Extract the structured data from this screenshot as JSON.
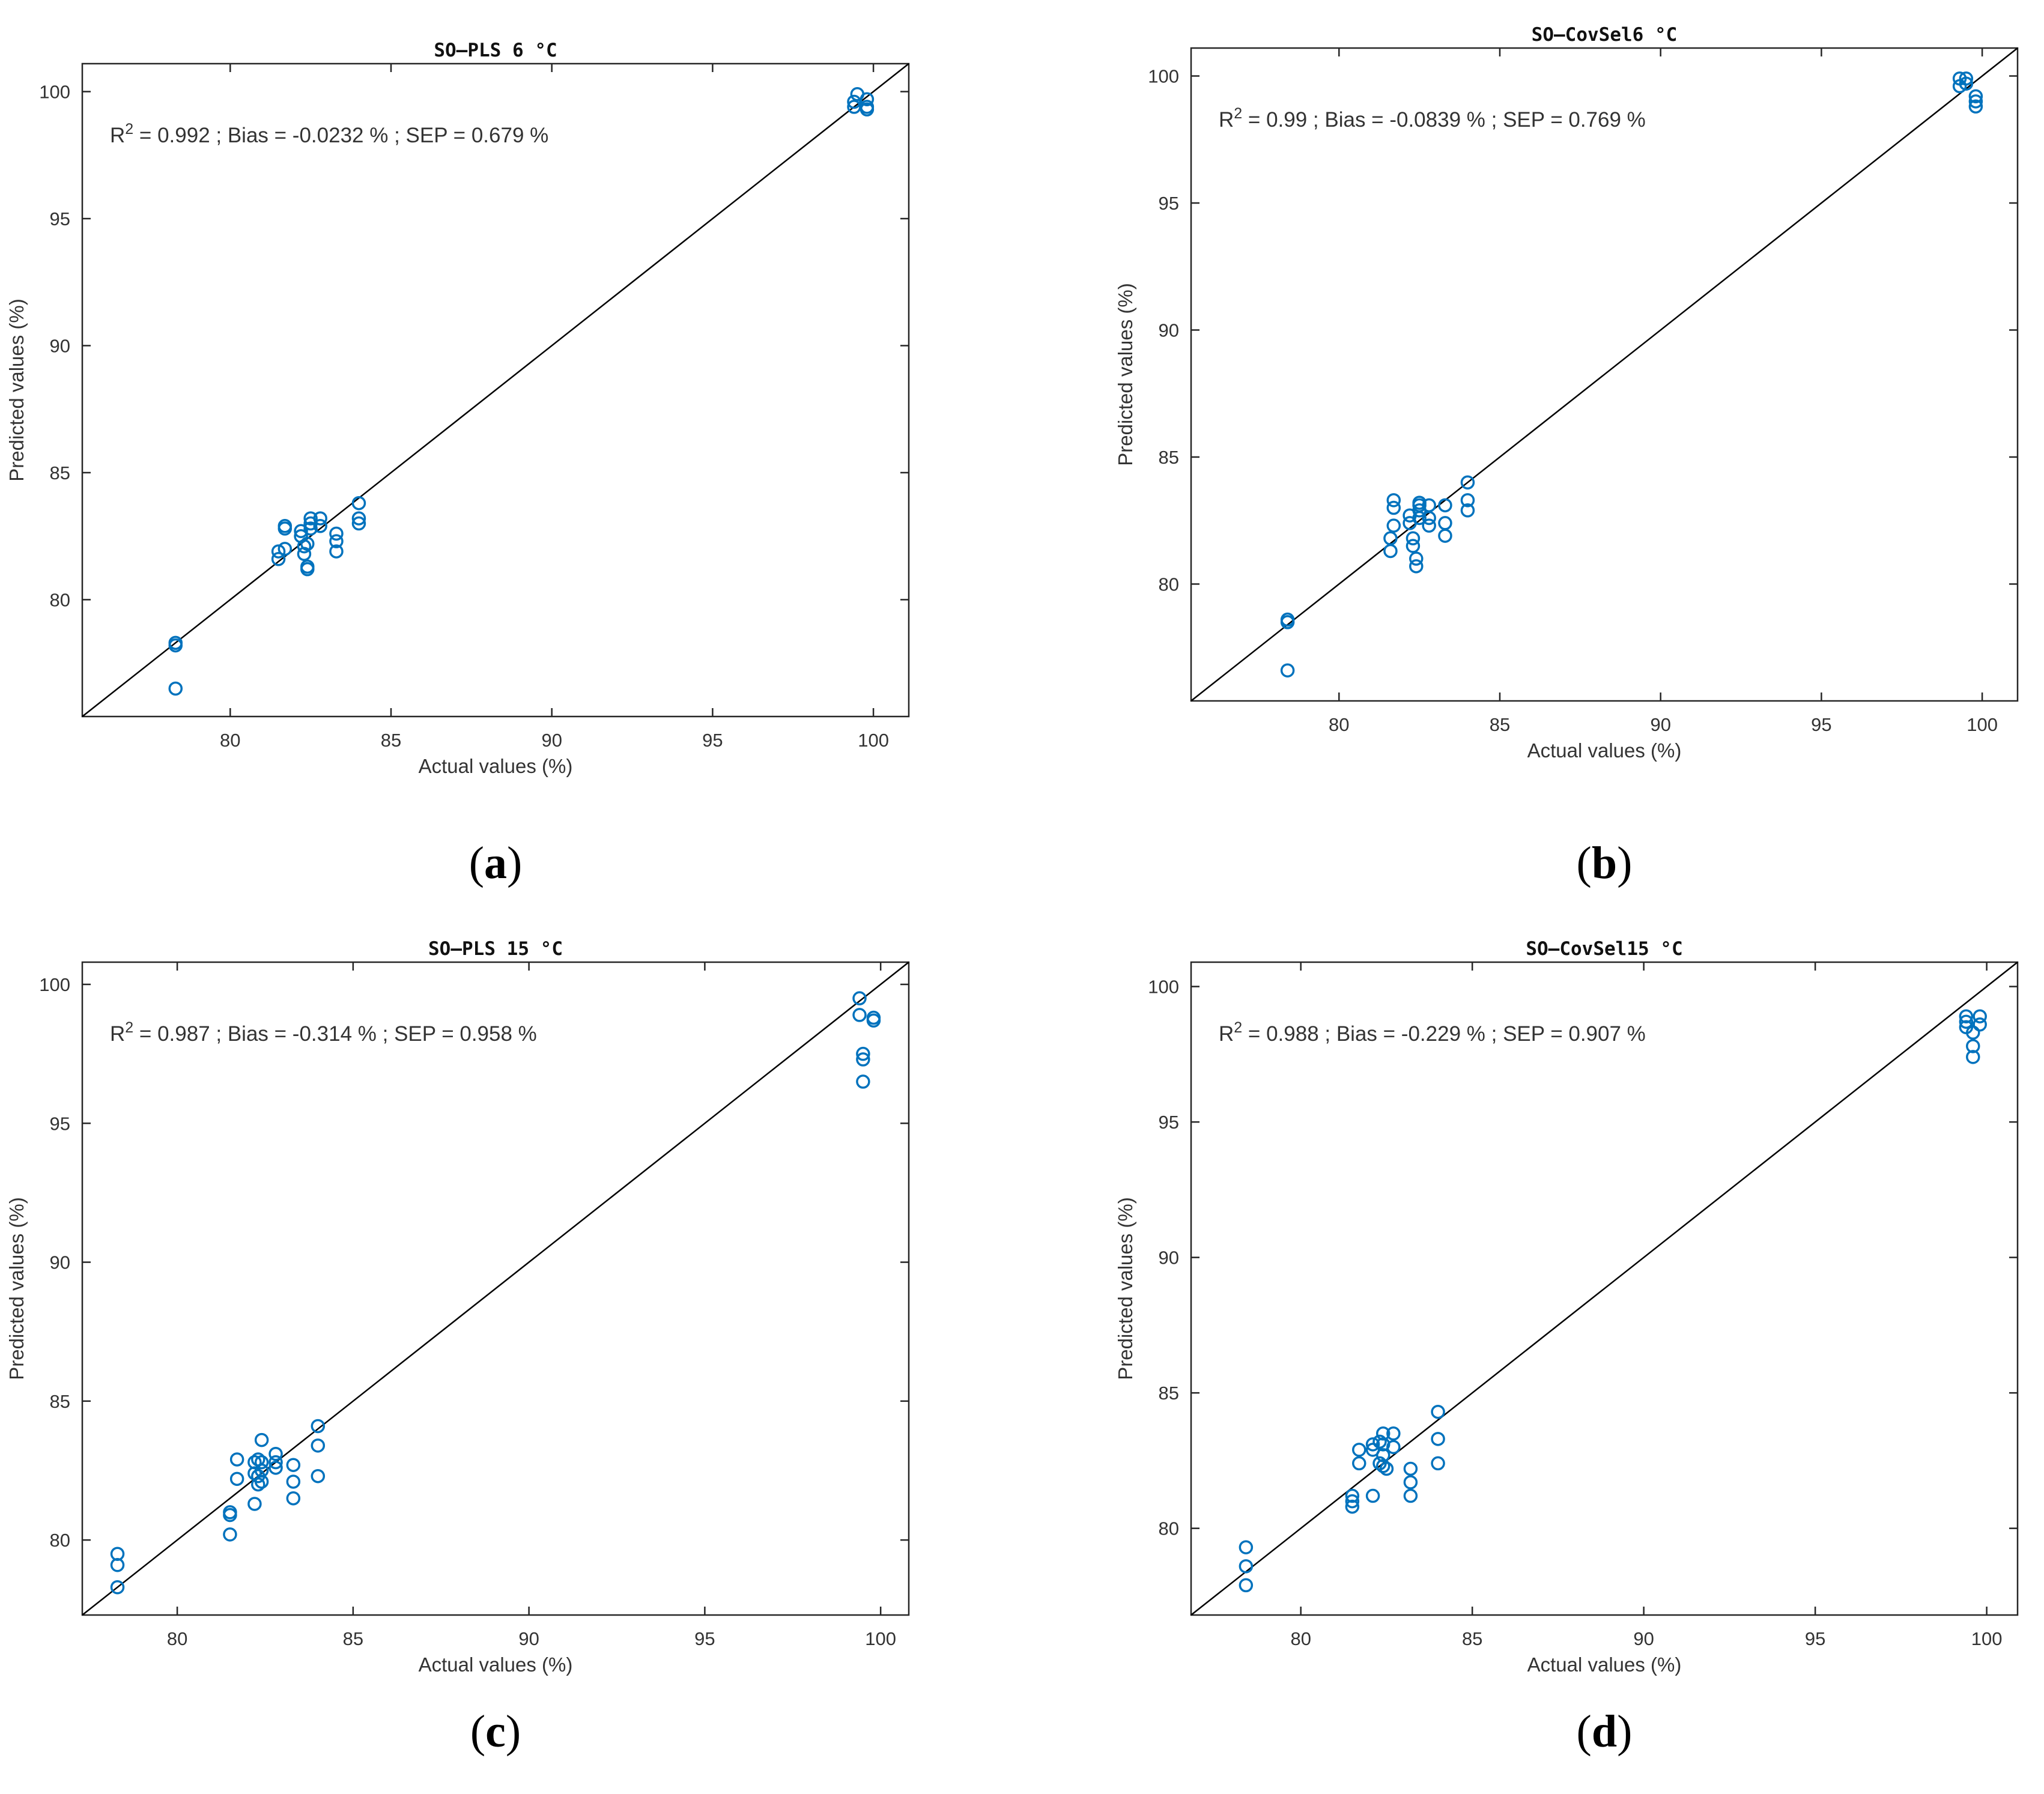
{
  "chart_data": [
    {
      "type": "scatter",
      "panel_label": "(a)",
      "title": "SO–PLS 6 °C",
      "xlabel": "Actual values (%)",
      "ylabel": "Predicted values (%)",
      "xlim": [
        75.4,
        101.1
      ],
      "ylim": [
        75.4,
        101.1
      ],
      "xticks": [
        80,
        85,
        90,
        95,
        100
      ],
      "yticks": [
        80,
        85,
        90,
        95,
        100
      ],
      "annotation": {
        "r2": "0.992",
        "rest": " ; Bias = -0.0232 % ; SEP = 0.679 %"
      },
      "identity_line": true,
      "points": [
        [
          78.3,
          78.3
        ],
        [
          78.3,
          78.2
        ],
        [
          78.3,
          76.5
        ],
        [
          81.5,
          81.6
        ],
        [
          81.5,
          81.9
        ],
        [
          81.7,
          82.0
        ],
        [
          81.7,
          82.8
        ],
        [
          81.7,
          82.9
        ],
        [
          82.2,
          82.7
        ],
        [
          82.2,
          82.5
        ],
        [
          82.3,
          82.1
        ],
        [
          82.3,
          81.8
        ],
        [
          82.4,
          81.3
        ],
        [
          82.4,
          81.2
        ],
        [
          82.4,
          82.2
        ],
        [
          82.5,
          83.2
        ],
        [
          82.5,
          83.0
        ],
        [
          82.5,
          82.8
        ],
        [
          82.8,
          83.2
        ],
        [
          82.8,
          82.9
        ],
        [
          83.3,
          82.6
        ],
        [
          83.3,
          82.3
        ],
        [
          83.3,
          81.9
        ],
        [
          84.0,
          83.8
        ],
        [
          84.0,
          83.2
        ],
        [
          84.0,
          83.0
        ],
        [
          99.4,
          99.4
        ],
        [
          99.4,
          99.6
        ],
        [
          99.5,
          99.9
        ],
        [
          99.8,
          99.7
        ],
        [
          99.8,
          99.3
        ],
        [
          99.8,
          99.4
        ]
      ]
    },
    {
      "type": "scatter",
      "panel_label": "(b)",
      "title": "SO–CovSel6 °C",
      "xlabel": "Actual values (%)",
      "ylabel": "Predicted values (%)",
      "xlim": [
        75.4,
        101.1
      ],
      "ylim": [
        75.4,
        101.1
      ],
      "xticks": [
        80,
        85,
        90,
        95,
        100
      ],
      "yticks": [
        80,
        85,
        90,
        95,
        100
      ],
      "annotation": {
        "r2": "0.99",
        "rest": " ; Bias = -0.0839 % ; SEP = 0.769 %"
      },
      "identity_line": true,
      "points": [
        [
          78.4,
          78.6
        ],
        [
          78.4,
          78.5
        ],
        [
          78.4,
          76.6
        ],
        [
          81.6,
          81.8
        ],
        [
          81.6,
          81.3
        ],
        [
          81.7,
          83.3
        ],
        [
          81.7,
          83.0
        ],
        [
          81.7,
          82.3
        ],
        [
          82.2,
          82.7
        ],
        [
          82.2,
          82.4
        ],
        [
          82.3,
          81.8
        ],
        [
          82.3,
          81.5
        ],
        [
          82.4,
          81.0
        ],
        [
          82.4,
          80.7
        ],
        [
          82.5,
          83.2
        ],
        [
          82.5,
          83.1
        ],
        [
          82.5,
          82.9
        ],
        [
          82.5,
          82.6
        ],
        [
          82.8,
          83.1
        ],
        [
          82.8,
          82.6
        ],
        [
          82.8,
          82.3
        ],
        [
          83.3,
          83.1
        ],
        [
          83.3,
          82.4
        ],
        [
          83.3,
          81.9
        ],
        [
          84.0,
          84.0
        ],
        [
          84.0,
          83.3
        ],
        [
          84.0,
          82.9
        ],
        [
          99.3,
          99.9
        ],
        [
          99.3,
          99.6
        ],
        [
          99.5,
          99.9
        ],
        [
          99.5,
          99.7
        ],
        [
          99.8,
          99.2
        ],
        [
          99.8,
          99.0
        ],
        [
          99.8,
          98.8
        ]
      ]
    },
    {
      "type": "scatter",
      "panel_label": "(c)",
      "title": "SO–PLS 15 °C",
      "xlabel": "Actual values (%)",
      "ylabel": "Predicted values (%)",
      "xlim": [
        77.3,
        100.8
      ],
      "ylim": [
        77.3,
        100.8
      ],
      "xticks": [
        80,
        85,
        90,
        95,
        100
      ],
      "yticks": [
        80,
        85,
        90,
        95,
        100
      ],
      "annotation": {
        "r2": "0.987",
        "rest": " ; Bias = -0.314 % ; SEP = 0.958 %"
      },
      "identity_line": true,
      "points": [
        [
          78.3,
          79.5
        ],
        [
          78.3,
          79.1
        ],
        [
          78.3,
          78.3
        ],
        [
          81.5,
          81.0
        ],
        [
          81.5,
          80.9
        ],
        [
          81.5,
          80.2
        ],
        [
          81.7,
          82.9
        ],
        [
          81.7,
          82.2
        ],
        [
          82.2,
          82.8
        ],
        [
          82.2,
          82.4
        ],
        [
          82.2,
          81.3
        ],
        [
          82.3,
          82.9
        ],
        [
          82.3,
          82.3
        ],
        [
          82.3,
          82.0
        ],
        [
          82.4,
          83.6
        ],
        [
          82.4,
          82.8
        ],
        [
          82.4,
          82.5
        ],
        [
          82.4,
          82.1
        ],
        [
          82.8,
          83.1
        ],
        [
          82.8,
          82.8
        ],
        [
          82.8,
          82.6
        ],
        [
          83.3,
          82.7
        ],
        [
          83.3,
          82.1
        ],
        [
          83.3,
          81.5
        ],
        [
          84.0,
          84.1
        ],
        [
          84.0,
          83.4
        ],
        [
          84.0,
          82.3
        ],
        [
          99.4,
          99.5
        ],
        [
          99.4,
          98.9
        ],
        [
          99.5,
          97.5
        ],
        [
          99.5,
          97.3
        ],
        [
          99.5,
          96.5
        ],
        [
          99.8,
          98.8
        ],
        [
          99.8,
          98.7
        ]
      ]
    },
    {
      "type": "scatter",
      "panel_label": "(d)",
      "title": "SO–CovSel15 °C",
      "xlabel": "Actual values (%)",
      "ylabel": "Predicted values (%)",
      "xlim": [
        76.8,
        100.9
      ],
      "ylim": [
        76.8,
        100.9
      ],
      "xticks": [
        80,
        85,
        90,
        95,
        100
      ],
      "yticks": [
        80,
        85,
        90,
        95,
        100
      ],
      "annotation": {
        "r2": "0.988",
        "rest": " ; Bias = -0.229 % ; SEP = 0.907 %"
      },
      "identity_line": true,
      "points": [
        [
          78.4,
          79.3
        ],
        [
          78.4,
          78.6
        ],
        [
          78.4,
          77.9
        ],
        [
          81.5,
          81.2
        ],
        [
          81.5,
          81.0
        ],
        [
          81.5,
          80.8
        ],
        [
          81.7,
          82.9
        ],
        [
          81.7,
          82.4
        ],
        [
          82.1,
          83.1
        ],
        [
          82.1,
          82.9
        ],
        [
          82.1,
          81.2
        ],
        [
          82.3,
          83.2
        ],
        [
          82.3,
          82.4
        ],
        [
          82.4,
          83.5
        ],
        [
          82.4,
          83.1
        ],
        [
          82.4,
          82.7
        ],
        [
          82.4,
          82.3
        ],
        [
          82.5,
          82.2
        ],
        [
          82.7,
          83.5
        ],
        [
          82.7,
          83.0
        ],
        [
          83.2,
          82.2
        ],
        [
          83.2,
          81.7
        ],
        [
          83.2,
          81.2
        ],
        [
          84.0,
          84.3
        ],
        [
          84.0,
          83.3
        ],
        [
          84.0,
          82.4
        ],
        [
          99.4,
          98.9
        ],
        [
          99.4,
          98.7
        ],
        [
          99.4,
          98.5
        ],
        [
          99.6,
          98.3
        ],
        [
          99.6,
          97.8
        ],
        [
          99.6,
          97.4
        ],
        [
          99.8,
          98.9
        ],
        [
          99.8,
          98.6
        ]
      ]
    }
  ]
}
